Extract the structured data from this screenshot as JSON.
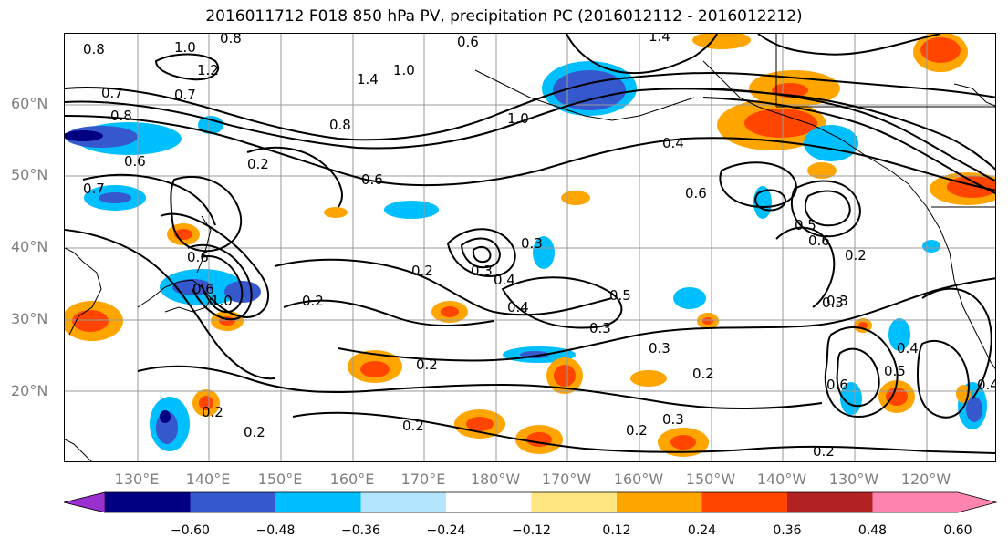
{
  "title": "2016011712 F018 850 hPa PV, precipitation PC (2016012112 - 2016012212)",
  "lat_labels": [
    "60°N",
    "50°N",
    "40°N",
    "30°N",
    "20°N"
  ],
  "lon_labels": [
    "130°E",
    "140°E",
    "150°E",
    "160°E",
    "170°E",
    "180°W",
    "170°W",
    "160°W",
    "150°W",
    "140°W",
    "130°W",
    "120°W"
  ],
  "contour_labels": [
    "0.8",
    "1.0",
    "0.8",
    "0.6",
    "1.4",
    "0.7",
    "1.2",
    "0.7",
    "1.4",
    "1.0",
    "0.8",
    "0.6",
    "1.0",
    "0.2",
    "0.8",
    "0.6",
    "0.4",
    "0.6",
    "0.7",
    "0.6",
    "0.3",
    "0.5",
    "0.6",
    "0.6",
    "0.4",
    "1.0",
    "0.2",
    "0.2",
    "0.3",
    "0.3",
    "0.2",
    "0.4",
    "0.5",
    "0.3",
    "0.3",
    "0.2",
    "0.2",
    "0.2",
    "0.3",
    "0.2",
    "0.2",
    "0.2",
    "0.3",
    "0.4",
    "0.6",
    "0.5",
    "0.4",
    "0.2"
  ],
  "colorbar": {
    "ticks": [
      "−0.60",
      "−0.48",
      "−0.36",
      "−0.24",
      "−0.12",
      "0.12",
      "0.24",
      "0.36",
      "0.48",
      "0.60"
    ],
    "colors": [
      "#9b30d0",
      "#000080",
      "#3558cc",
      "#00bfff",
      "#b3e5ff",
      "#ffffff",
      "#ffe680",
      "#ffa500",
      "#ff4500",
      "#b22222",
      "#ff85b0",
      "#ff85b0"
    ]
  }
}
